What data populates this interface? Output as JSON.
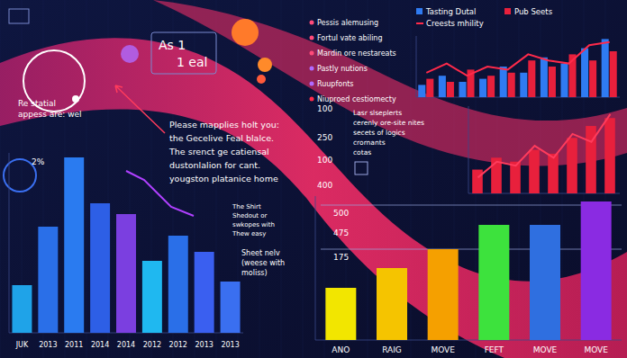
{
  "chart_data": [
    {
      "type": "bar",
      "categories": [
        "JUK",
        "2013",
        "2011",
        "2014",
        "2014",
        "2012",
        "2012",
        "2013",
        "2013"
      ],
      "values": [
        53,
        118,
        195,
        144,
        132,
        80,
        108,
        90,
        57
      ],
      "colors": [
        "#1fa3e8",
        "#2a6fe8",
        "#2a7bf0",
        "#2d5fe6",
        "#7b3fe0",
        "#1fb8f0",
        "#2a6fe8",
        "#3a5ff0",
        "#3a6ff0"
      ],
      "ylim": [
        0,
        200
      ],
      "tick_labels": "x",
      "annotations": [
        "Re statial",
        "appess are: wel",
        "2%",
        "Please mapplies holt you:",
        "the Gecelive Feal blalce.",
        "The srenct ge catiensal",
        "dustonlalion for cant.",
        "yougston platanice home",
        "The Shirt",
        "Shedout or",
        "swkopes with",
        "Thew easy",
        "Sheet nelv",
        "(weese with",
        "moliss)",
        "As 1",
        "1 eal"
      ]
    },
    {
      "type": "bar",
      "categories": [
        null,
        null,
        null,
        null,
        null,
        null,
        null,
        null,
        null,
        null
      ],
      "series": [
        {
          "name": "Tasting Dutal",
          "color": "#2f7bf2",
          "values": [
            20,
            35,
            25,
            30,
            50,
            40,
            65,
            55,
            80,
            95
          ]
        },
        {
          "name": "Pub Seets",
          "color": "#e8203c",
          "values": [
            30,
            25,
            45,
            35,
            40,
            60,
            50,
            70,
            60,
            75
          ]
        },
        {
          "name": "Creests mhility",
          "type": "line",
          "color": "#ff2a4a",
          "values": [
            40,
            55,
            35,
            50,
            45,
            70,
            60,
            55,
            85,
            90
          ]
        }
      ],
      "ylim": [
        0,
        100
      ],
      "tick_labels": false,
      "legend": "top",
      "annotations": [
        "Pessis alemusing",
        "Fortul vate abiling",
        "Mardin ore nestareats",
        "Pastly nutions",
        "Ruupfonts",
        "Niuproed cestiomecty"
      ]
    },
    {
      "type": "bar",
      "categories": [
        null,
        null,
        null,
        null,
        null,
        null,
        null,
        null
      ],
      "series": [
        {
          "color": "#e8203c",
          "values": [
            30,
            45,
            40,
            55,
            50,
            70,
            85,
            95
          ]
        },
        {
          "type": "line",
          "color": "#ff3b5c",
          "values": [
            20,
            40,
            35,
            60,
            45,
            75,
            65,
            100
          ]
        }
      ],
      "ylim": [
        0,
        110
      ],
      "tick_labels": false,
      "annotations": [
        "100",
        "250",
        "100",
        "400",
        "Lasr slseplerts",
        "cerenly ore-site nites",
        "secets of logics",
        "crornants",
        "cotas"
      ]
    },
    {
      "type": "bar",
      "categories": [
        "ANO",
        "RAIG",
        "MOVE",
        "FEFT",
        "MOVE",
        "MOVE"
      ],
      "values": [
        58,
        80,
        101,
        128,
        128,
        154
      ],
      "colors": [
        "#f2e600",
        "#f5c400",
        "#f5a000",
        "#3de23d",
        "#2f6fe0",
        "#8a2be2"
      ],
      "ylim": [
        0,
        160
      ],
      "tick_labels": "x",
      "annotations": [
        "500",
        "475",
        "175"
      ]
    }
  ]
}
